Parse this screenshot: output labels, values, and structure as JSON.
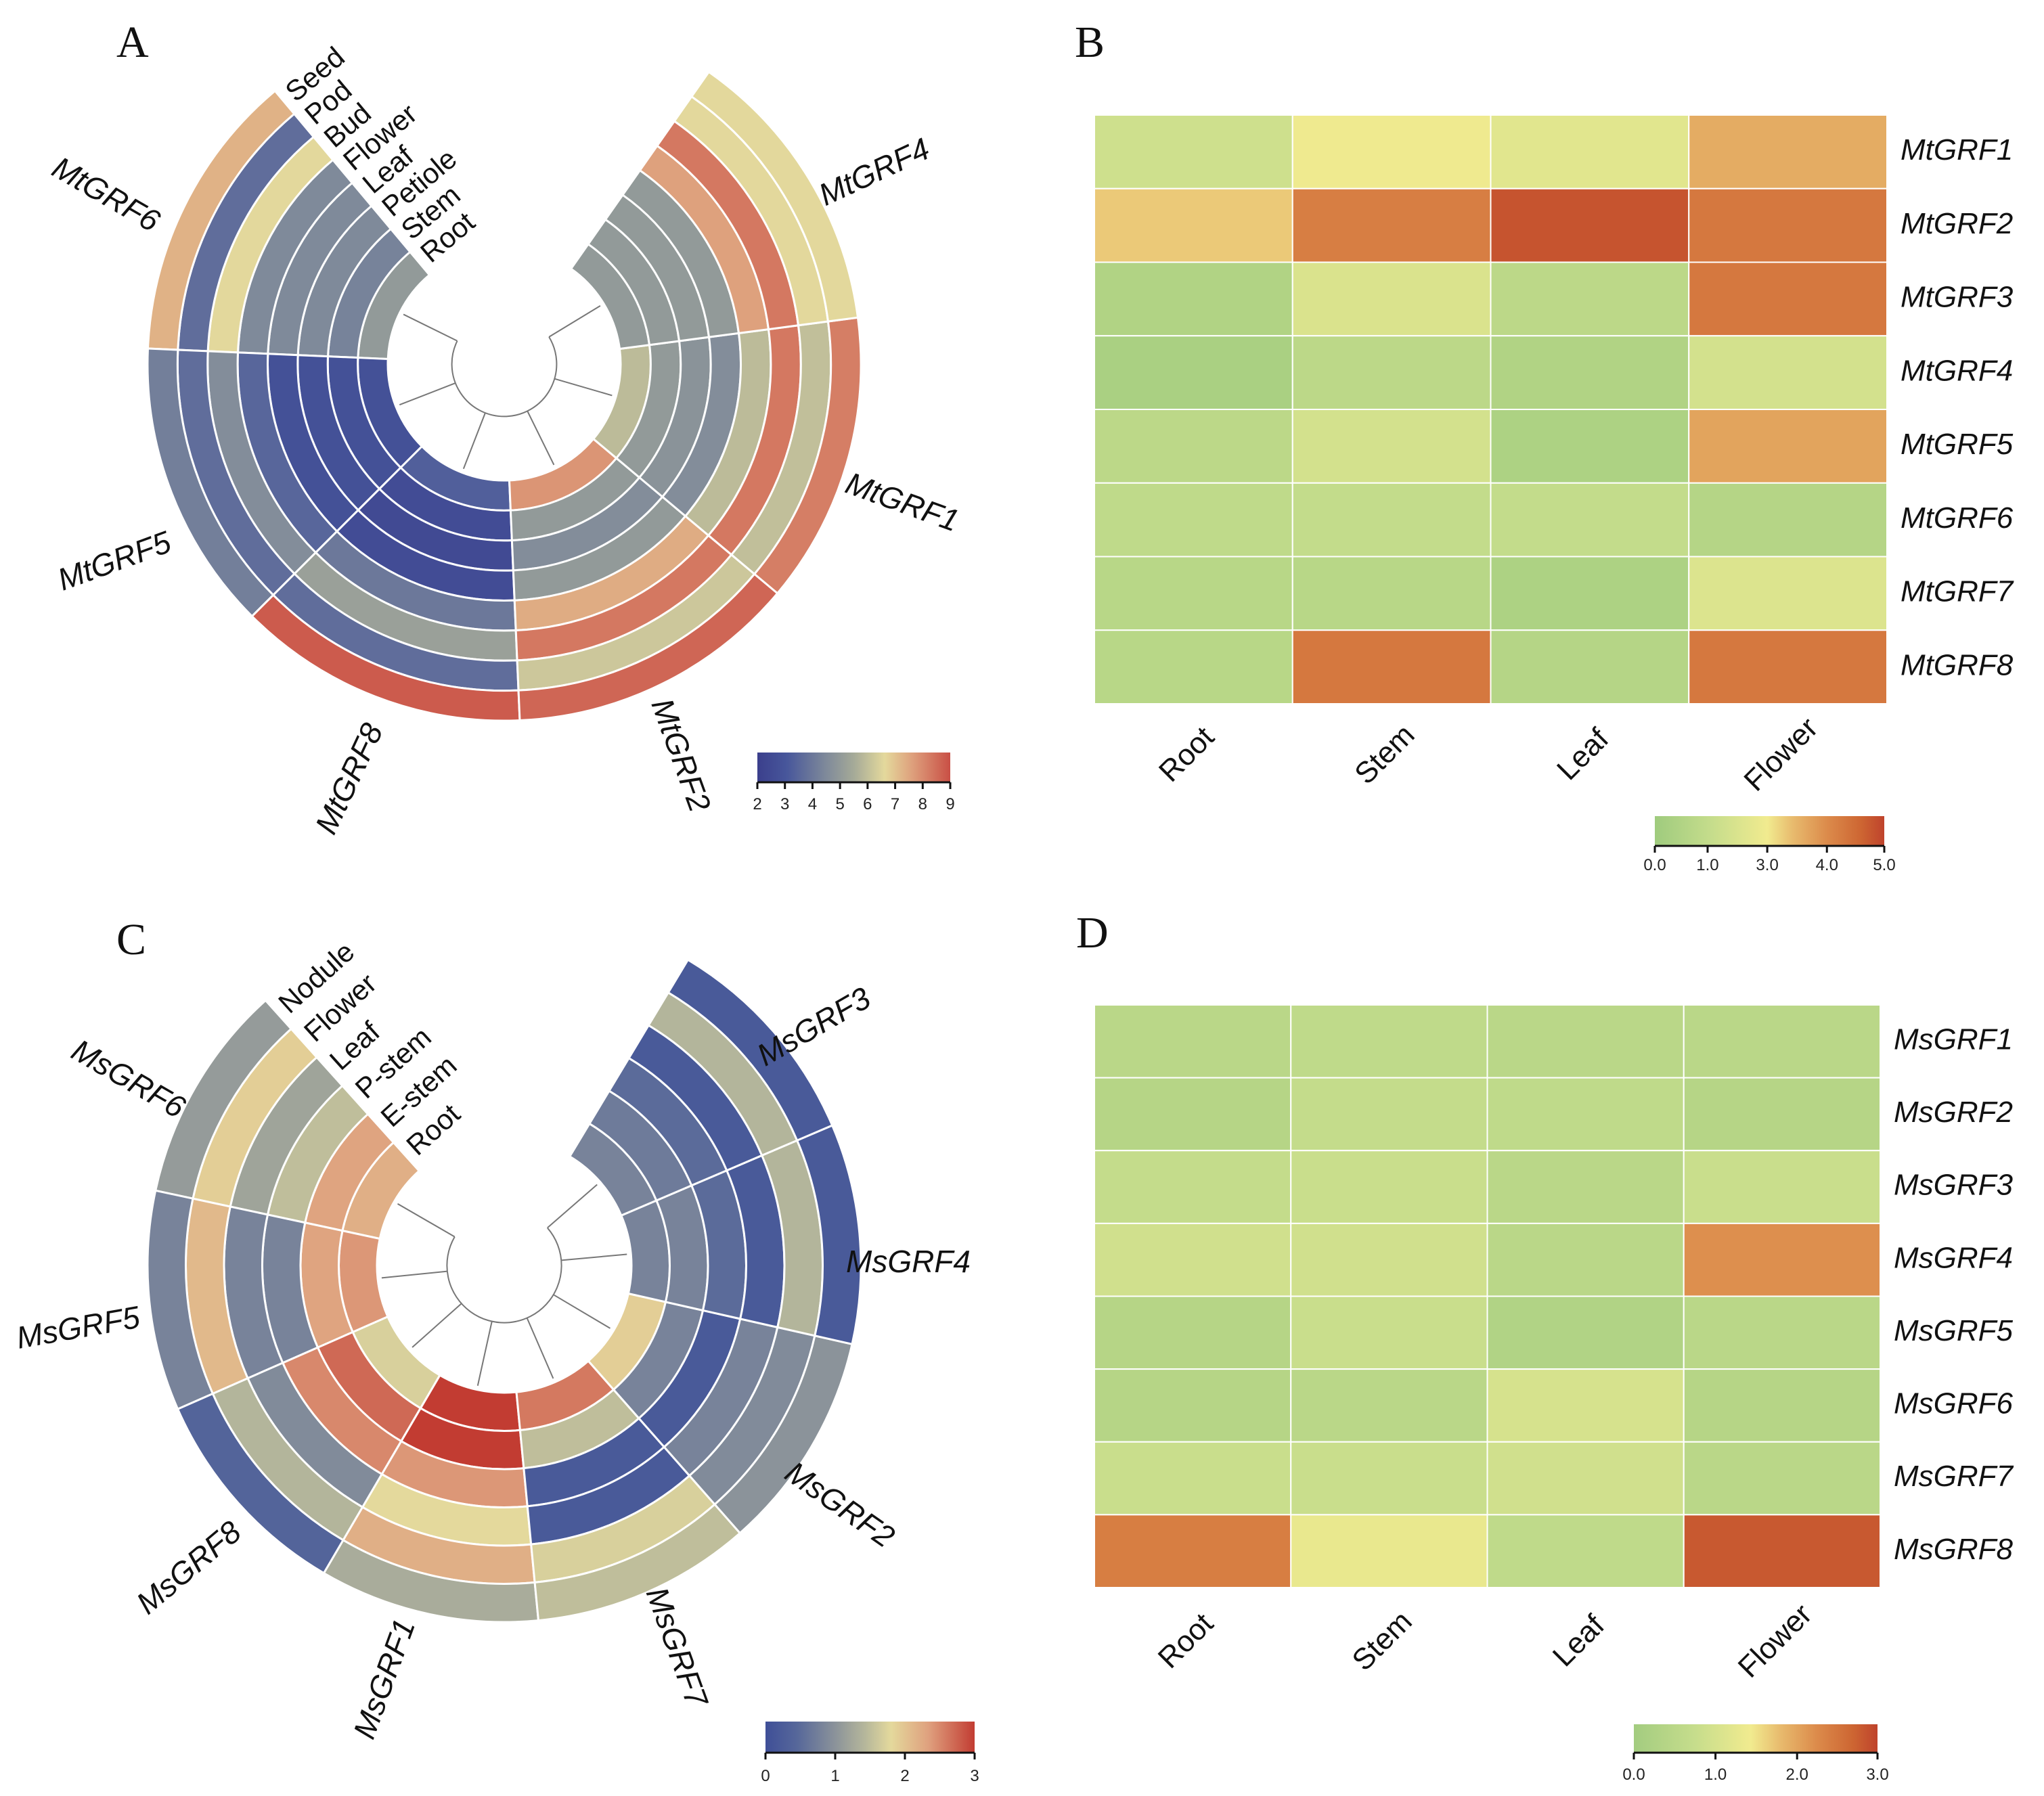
{
  "panels": [
    "A",
    "B",
    "C",
    "D"
  ],
  "chart_data": [
    {
      "panel": "A",
      "type": "heatmap",
      "layout": "circular",
      "genes": [
        "MtGRF6",
        "MtGRF5",
        "MtGRF8",
        "MtGRF2",
        "MtGRF1",
        "MtGRF4"
      ],
      "tissues": [
        "Root",
        "Stem",
        "Petiole",
        "Leaf",
        "Flower",
        "Bud",
        "Pod",
        "Seed"
      ],
      "values": [
        [
          5.0,
          4.3,
          4.5,
          4.5,
          4.5,
          6.6,
          3.7,
          7.3
        ],
        [
          2.8,
          2.8,
          2.8,
          2.8,
          3.5,
          4.6,
          3.7,
          4.2
        ],
        [
          3.3,
          2.6,
          2.5,
          2.6,
          4.0,
          5.2,
          3.7,
          8.8
        ],
        [
          7.8,
          5.0,
          4.6,
          5.0,
          7.4,
          8.3,
          6.2,
          8.6
        ],
        [
          5.9,
          5.0,
          4.8,
          4.6,
          5.9,
          8.3,
          6.0,
          8.2
        ],
        [
          5.0,
          5.0,
          5.0,
          5.0,
          7.6,
          8.3,
          6.6,
          6.6
        ]
      ],
      "colorbar": {
        "min": 2,
        "max": 9,
        "ticks": [
          "2",
          "3",
          "4",
          "5",
          "6",
          "7",
          "8",
          "9"
        ]
      },
      "colormap": [
        [
          0,
          "#3b3f8c"
        ],
        [
          0.15,
          "#47569b"
        ],
        [
          0.35,
          "#7d889a"
        ],
        [
          0.5,
          "#a5aa98"
        ],
        [
          0.66,
          "#e4d99c"
        ],
        [
          0.8,
          "#dea17d"
        ],
        [
          1,
          "#c94f45"
        ]
      ]
    },
    {
      "panel": "B",
      "type": "heatmap",
      "rows": [
        "MtGRF1",
        "MtGRF2",
        "MtGRF3",
        "MtGRF4",
        "MtGRF5",
        "MtGRF6",
        "MtGRF7",
        "MtGRF8"
      ],
      "columns": [
        "Root",
        "Stem",
        "Leaf",
        "Flower"
      ],
      "values": [
        [
          1.5,
          2.9,
          2.3,
          3.6
        ],
        [
          3.3,
          4.2,
          4.8,
          4.3
        ],
        [
          0.5,
          2.0,
          0.8,
          4.3
        ],
        [
          0.3,
          0.8,
          0.5,
          1.7
        ],
        [
          0.8,
          1.7,
          0.4,
          3.7
        ],
        [
          0.9,
          1.0,
          1.0,
          0.6
        ],
        [
          0.7,
          0.7,
          0.4,
          2.1
        ],
        [
          0.7,
          4.3,
          0.6,
          4.3
        ]
      ],
      "colorbar": {
        "min": 0,
        "max": 5,
        "tick_values": [
          0,
          1,
          3,
          4,
          5
        ],
        "ticks": [
          "0.0",
          "1.0",
          "3.0",
          "4.0",
          "5.0"
        ]
      },
      "colormap": [
        [
          0,
          "#9fcb7e"
        ],
        [
          0.25,
          "#c6dd8c"
        ],
        [
          0.49,
          "#f1eb8f"
        ],
        [
          0.6,
          "#e8bb6e"
        ],
        [
          0.75,
          "#dc8b4b"
        ],
        [
          0.9,
          "#cd6532"
        ],
        [
          1,
          "#bf432c"
        ]
      ]
    },
    {
      "panel": "C",
      "type": "heatmap",
      "layout": "circular",
      "genes": [
        "MsGRF6",
        "MsGRF5",
        "MsGRF8",
        "MsGRF1",
        "MsGRF7",
        "MsGRF2",
        "MsGRF4",
        "MsGRF3"
      ],
      "tissues": [
        "Root",
        "E-stem",
        "P-stem",
        "Leaf",
        "Flower",
        "Nodule"
      ],
      "values": [
        [
          2.2,
          2.3,
          1.5,
          1.2,
          1.9,
          1.1
        ],
        [
          2.4,
          2.3,
          0.8,
          0.8,
          2.1,
          0.8
        ],
        [
          1.7,
          2.7,
          2.5,
          0.9,
          1.4,
          0.4
        ],
        [
          3.0,
          3.0,
          2.4,
          1.8,
          2.2,
          1.3
        ],
        [
          2.6,
          1.5,
          0.2,
          0.2,
          1.7,
          1.5
        ],
        [
          1.9,
          0.8,
          0.2,
          0.8,
          0.9,
          1.0
        ],
        [
          0.8,
          0.8,
          0.5,
          0.2,
          1.4,
          0.2
        ],
        [
          0.8,
          0.7,
          0.5,
          0.2,
          1.4,
          0.2
        ]
      ],
      "colorbar": {
        "min": 0,
        "max": 3,
        "ticks": [
          "0",
          "1",
          "2",
          "3"
        ]
      },
      "colormap": [
        [
          0,
          "#3f4f98"
        ],
        [
          0.15,
          "#56679a"
        ],
        [
          0.33,
          "#8a929a"
        ],
        [
          0.48,
          "#b7b89b"
        ],
        [
          0.6,
          "#e4d99c"
        ],
        [
          0.78,
          "#dfa07e"
        ],
        [
          1,
          "#c23c32"
        ]
      ]
    },
    {
      "panel": "D",
      "type": "heatmap",
      "rows": [
        "MsGRF1",
        "MsGRF2",
        "MsGRF3",
        "MsGRF4",
        "MsGRF5",
        "MsGRF6",
        "MsGRF7",
        "MsGRF8"
      ],
      "columns": [
        "Root",
        "Stem",
        "Leaf",
        "Flower"
      ],
      "values": [
        [
          0.5,
          0.6,
          0.5,
          0.5
        ],
        [
          0.4,
          0.7,
          0.6,
          0.4
        ],
        [
          0.7,
          0.8,
          0.5,
          0.8
        ],
        [
          0.9,
          0.9,
          0.5,
          2.2
        ],
        [
          0.4,
          0.8,
          0.3,
          0.5
        ],
        [
          0.4,
          0.5,
          1.0,
          0.4
        ],
        [
          0.8,
          0.8,
          0.9,
          0.5
        ],
        [
          2.4,
          1.3,
          0.6,
          2.8
        ]
      ],
      "colorbar": {
        "min": 0,
        "max": 3,
        "tick_values": [
          0,
          1,
          2,
          3
        ],
        "ticks": [
          "0.0",
          "1.0",
          "2.0",
          "3.0"
        ]
      },
      "colormap": [
        [
          0,
          "#a3cc80"
        ],
        [
          0.25,
          "#c6dd8c"
        ],
        [
          0.48,
          "#f1eb8f"
        ],
        [
          0.6,
          "#e8bb6e"
        ],
        [
          0.75,
          "#dc8b4b"
        ],
        [
          0.9,
          "#cd6532"
        ],
        [
          1,
          "#bf432c"
        ]
      ]
    }
  ]
}
